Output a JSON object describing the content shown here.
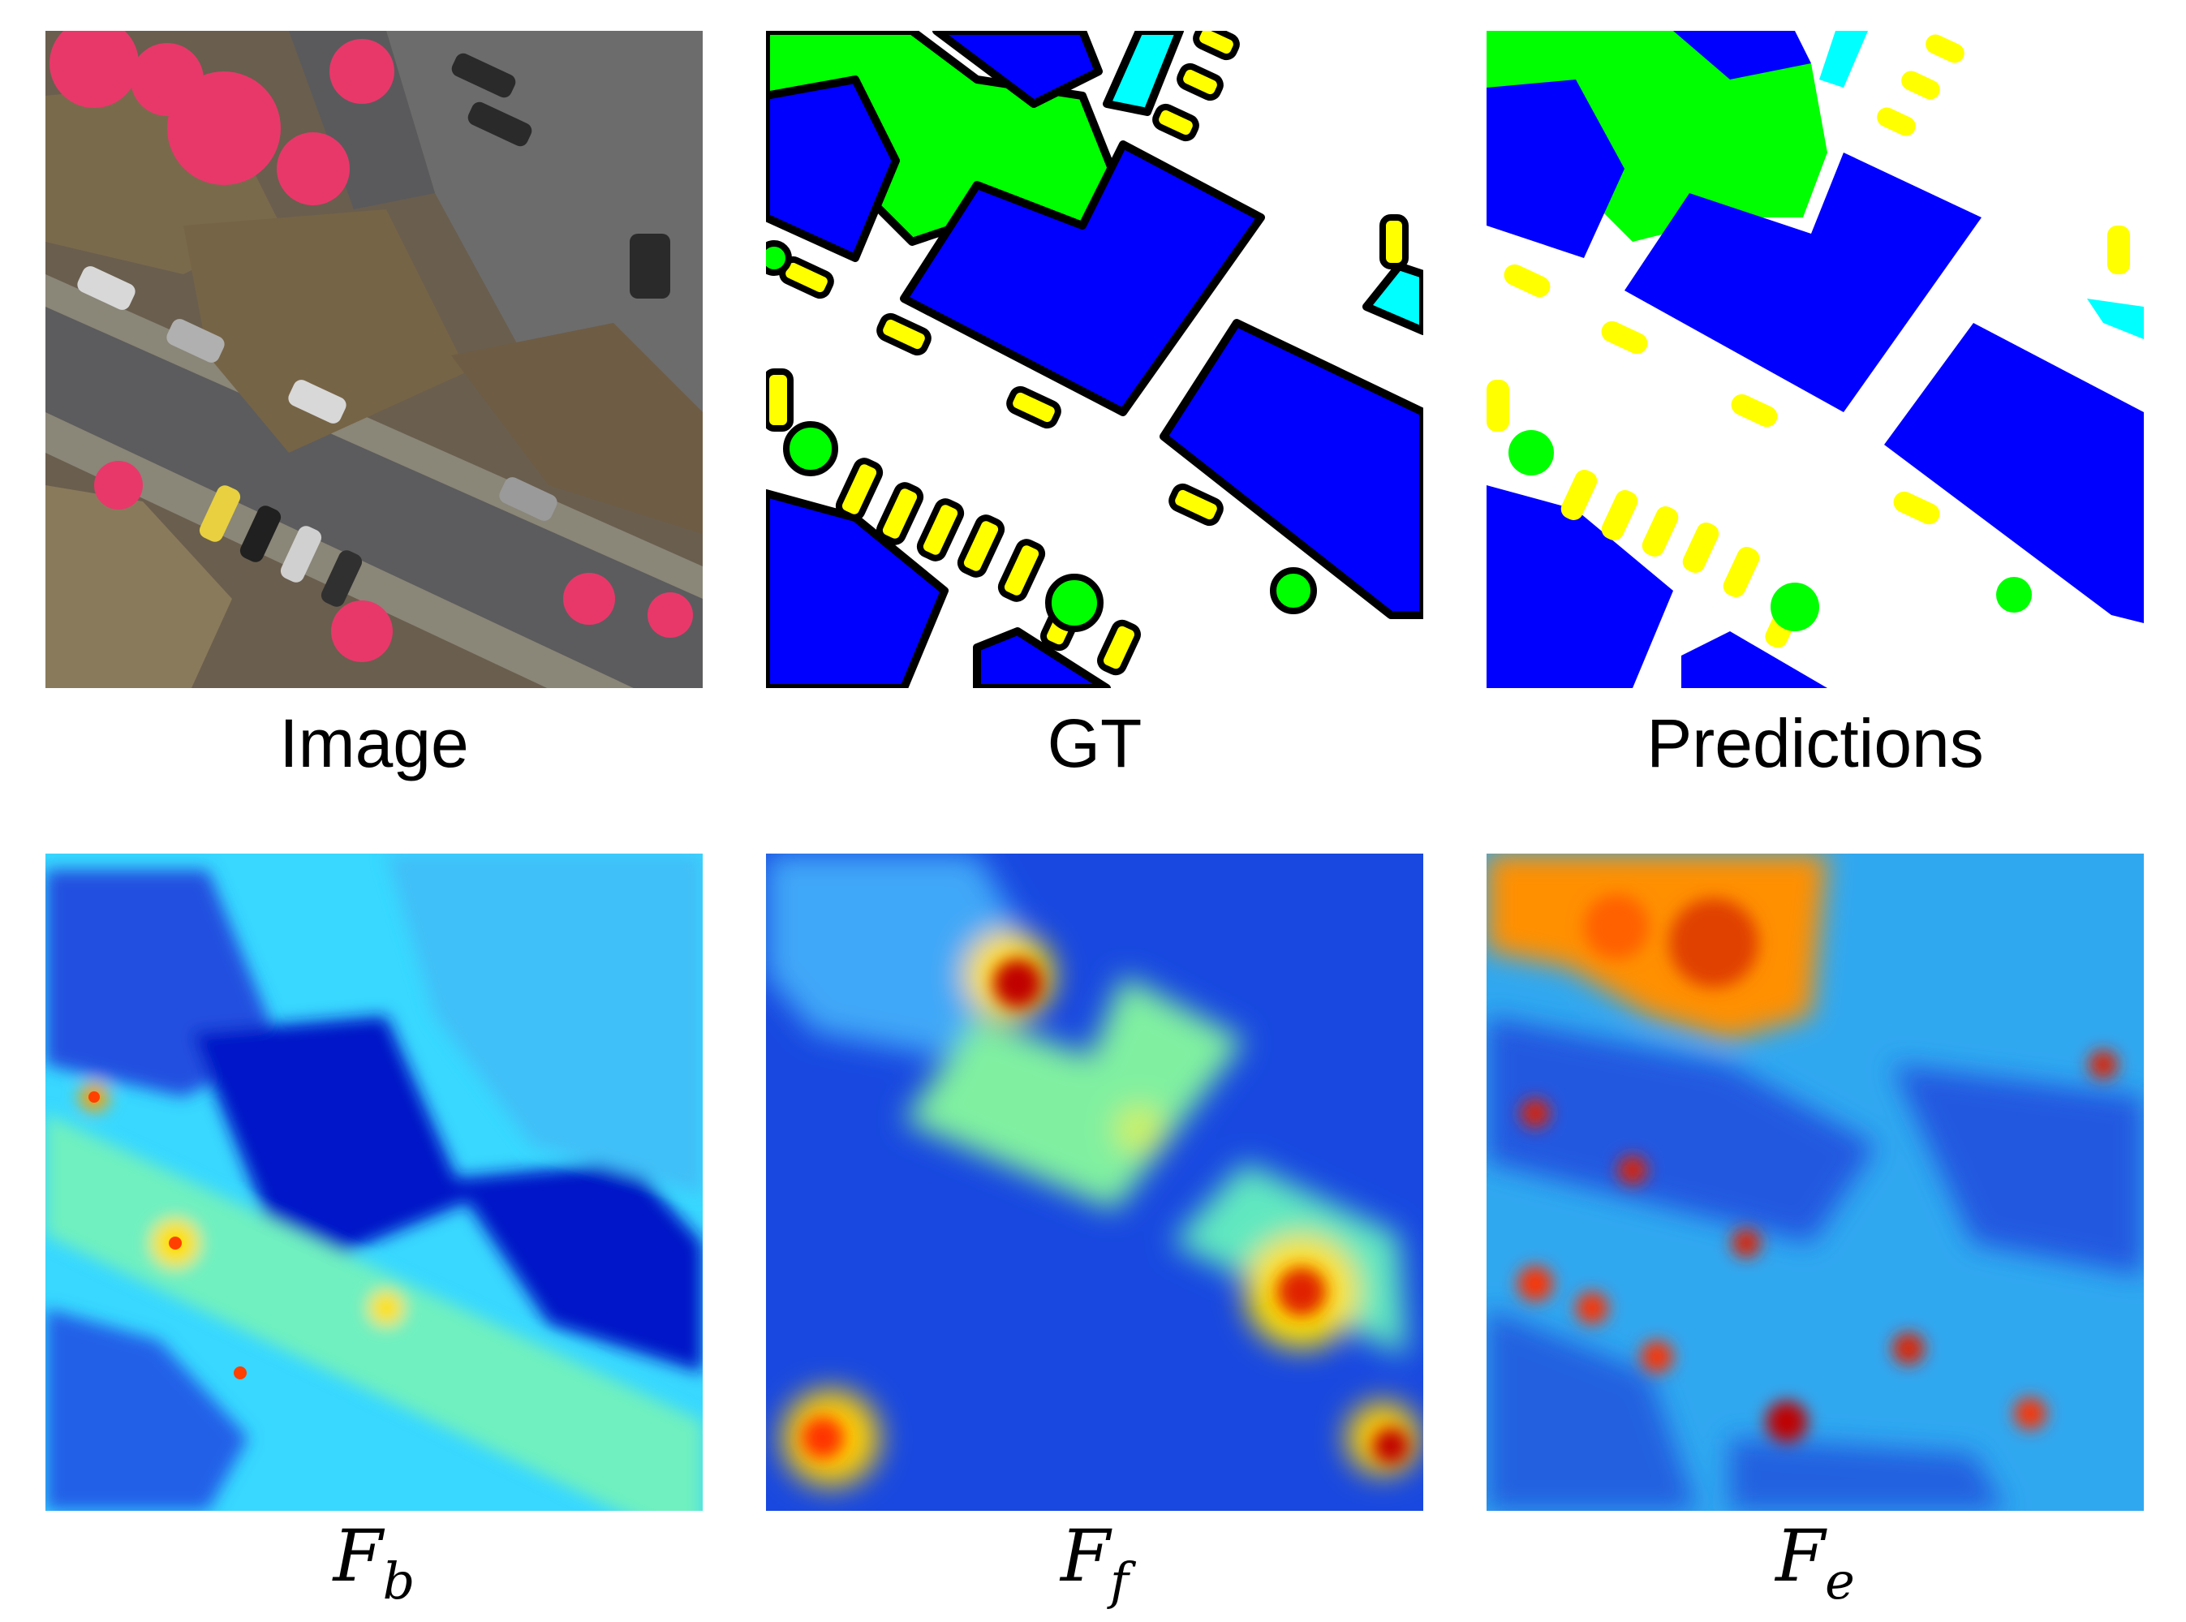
{
  "figure": {
    "panels": [
      {
        "caption": "Image"
      },
      {
        "caption": "GT"
      },
      {
        "caption": "Predictions"
      },
      {
        "caption_main": "F",
        "caption_sub": "b"
      },
      {
        "caption_main": "F",
        "caption_sub": "f"
      },
      {
        "caption_main": "F",
        "caption_sub": "e"
      }
    ]
  },
  "palette": {
    "building": "#0000ff",
    "low_vegetation": "#00ffff",
    "tree": "#00ff00",
    "car": "#ffff00",
    "impervious": "#ffffff",
    "tree_ir": "#e8386a",
    "road": "#5a5a5a",
    "roof": "#6e5a46",
    "heat_low": "#0018c8",
    "heat_mid": "#38d8ff",
    "heat_warm": "#ffe000",
    "heat_hot": "#ff2800",
    "heat_max": "#a80000"
  },
  "icons": {
    "image_panel": "aerial-image",
    "gt_panel": "segmentation-mask",
    "pred_panel": "segmentation-mask",
    "heatmap_panel": "feature-heatmap"
  }
}
